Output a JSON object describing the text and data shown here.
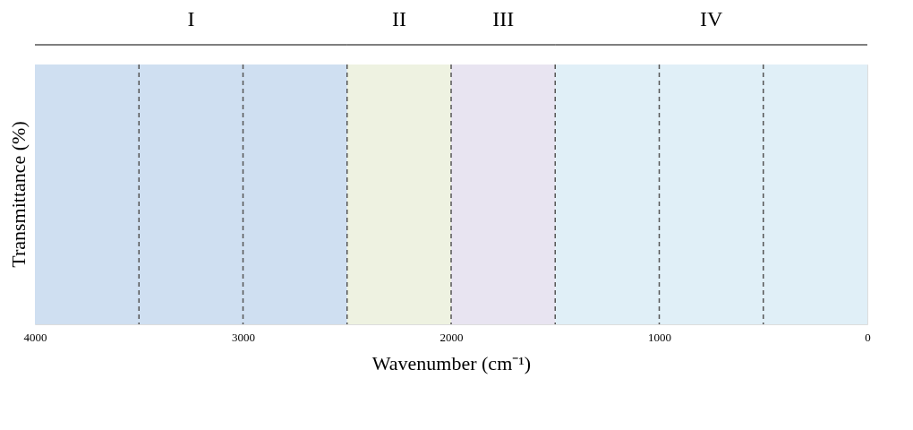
{
  "chart_data": {
    "type": "bar",
    "orientation": "horizontal",
    "stacked": true,
    "xlabel": "Wavenumber (cm⁻¹)",
    "ylabel": "Transmittance (%)",
    "xlim": [
      4000,
      0
    ],
    "xticks": [
      4000,
      3000,
      2000,
      1000,
      0
    ],
    "tick_labels": "x",
    "categories": [
      null
    ],
    "series": [
      {
        "name": "IV",
        "color": "#e0eff7",
        "values": [
          1500
        ]
      },
      {
        "name": "III",
        "color": "#e8e4f1",
        "values": [
          500
        ]
      },
      {
        "name": "II",
        "color": "#eef2e1",
        "values": [
          500
        ]
      },
      {
        "name": "I",
        "color": "#cfdff1",
        "values": [
          1500
        ]
      }
    ],
    "ref_lines": [
      {
        "axis": "x",
        "value": 3500,
        "line_style": "dashed",
        "color": "#555555"
      },
      {
        "axis": "x",
        "value": 3000,
        "line_style": "dashed",
        "color": "#555555"
      },
      {
        "axis": "x",
        "value": 2500,
        "line_style": "dashed",
        "color": "#555555"
      },
      {
        "axis": "x",
        "value": 2000,
        "line_style": "dashed",
        "color": "#555555"
      },
      {
        "axis": "x",
        "value": 1500,
        "line_style": "dashed",
        "color": "#555555"
      },
      {
        "axis": "x",
        "value": 1000,
        "line_style": "dashed",
        "color": "#555555"
      },
      {
        "axis": "x",
        "value": 500,
        "line_style": "dashed",
        "color": "#555555"
      }
    ]
  }
}
